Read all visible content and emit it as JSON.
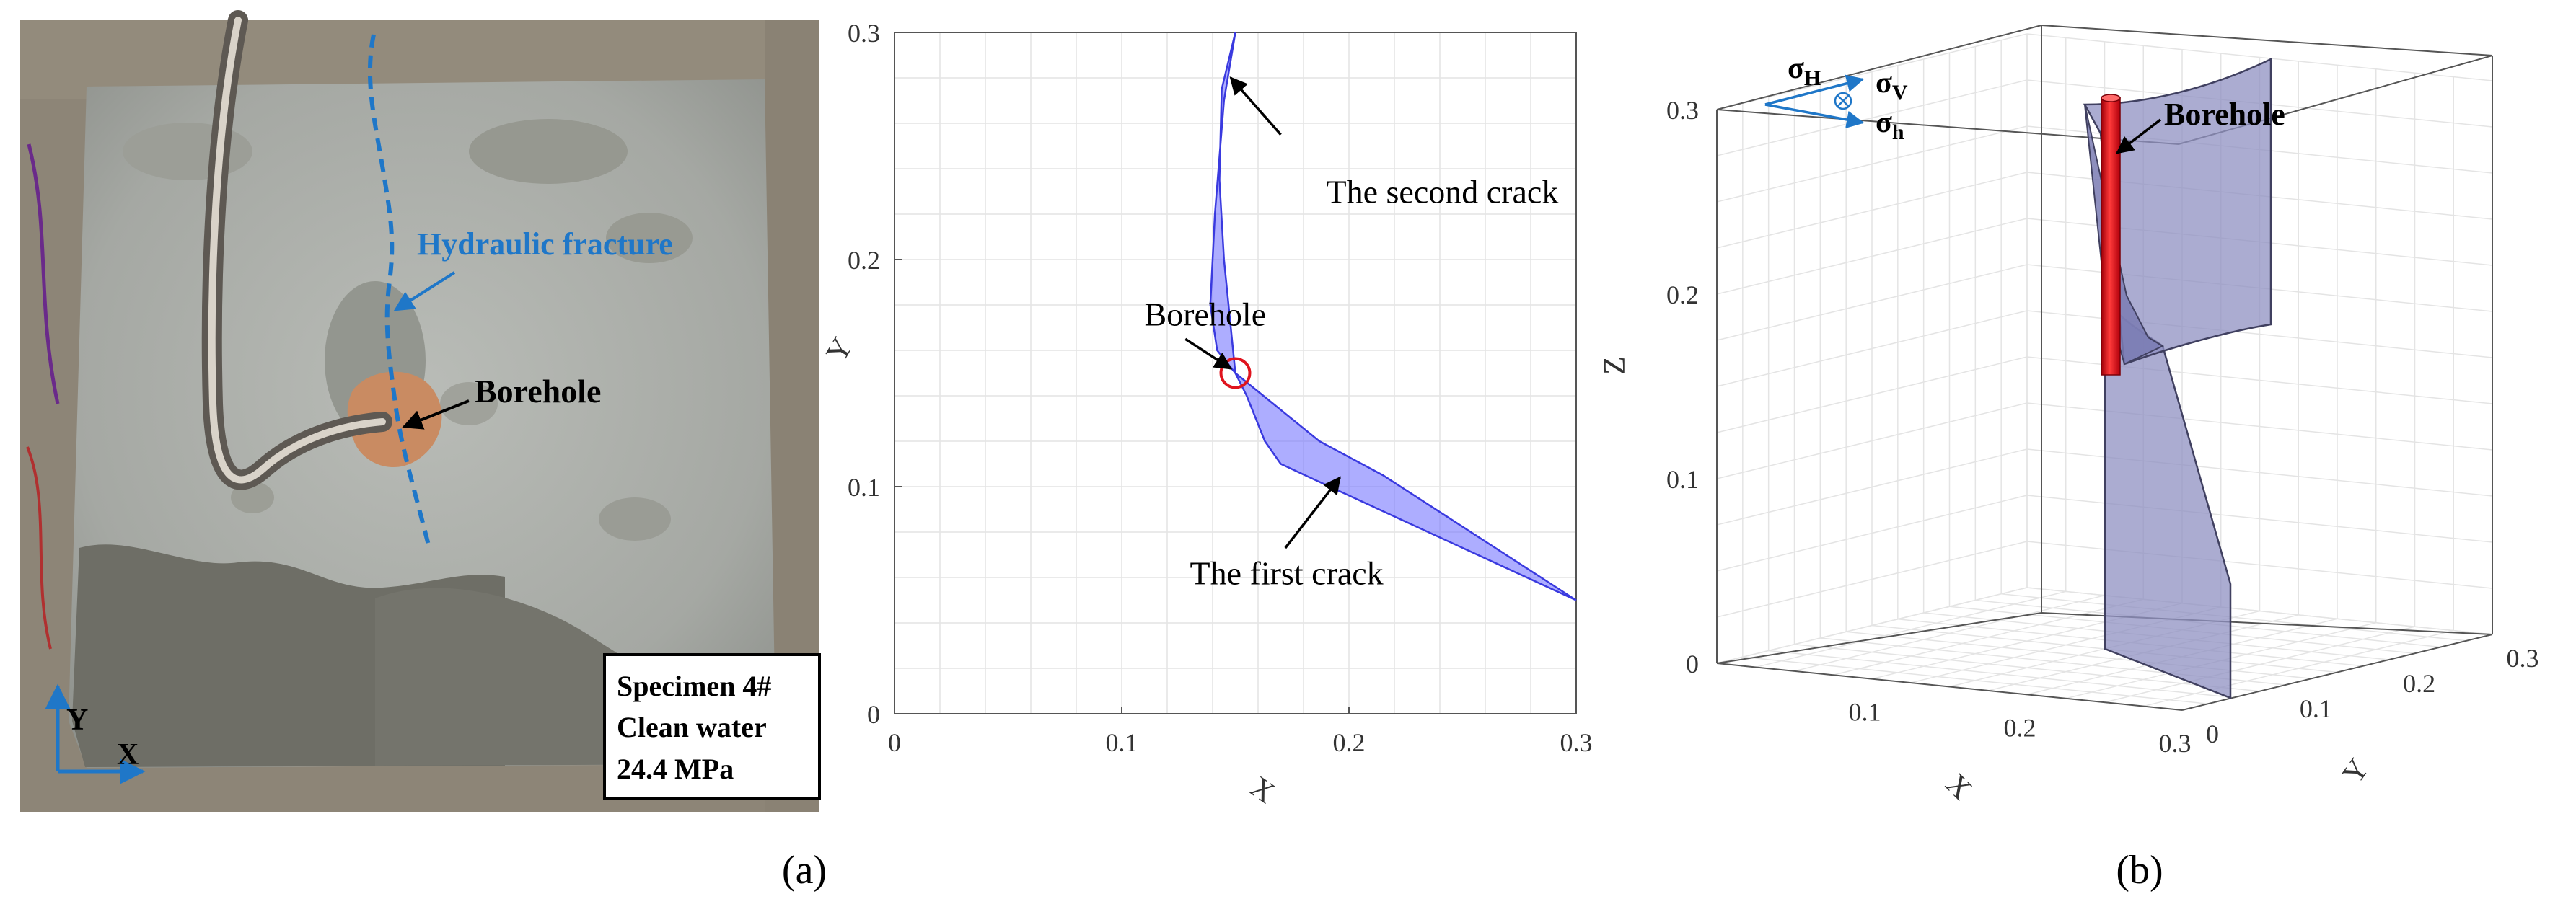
{
  "photo": {
    "fracture_label": "Hydraulic fracture",
    "borehole_label": "Borehole",
    "axis_y": "Y",
    "axis_x": "X",
    "info_lines": [
      "Specimen 4#",
      "Clean water",
      "24.4 MPa"
    ]
  },
  "panel_labels": {
    "a": "(a)",
    "b": "(b)"
  },
  "chart_data": [
    {
      "type": "area",
      "xlabel": "X",
      "ylabel": "Y",
      "xlim": [
        0,
        0.3
      ],
      "ylim": [
        0,
        0.3
      ],
      "xticks": [
        0,
        0.1,
        0.2,
        0.3
      ],
      "yticks": [
        0,
        0.1,
        0.2,
        0.3
      ],
      "xtick_labels": [
        "0",
        "0.1",
        "0.2",
        "0.3"
      ],
      "ytick_labels": [
        "0",
        "0.1",
        "0.2",
        "0.3"
      ],
      "grid": true,
      "borehole": {
        "x": 0.15,
        "y": 0.15
      },
      "cracks": [
        {
          "polygon": [
            [
              0.15,
              0.15
            ],
            [
              0.145,
              0.2
            ],
            [
              0.143,
              0.235
            ],
            [
              0.144,
              0.275
            ],
            [
              0.15,
              0.3
            ],
            [
              0.145,
              0.27
            ],
            [
              0.141,
              0.22
            ],
            [
              0.139,
              0.18
            ],
            [
              0.142,
              0.16
            ]
          ]
        },
        {
          "polygon": [
            [
              0.15,
              0.15
            ],
            [
              0.155,
              0.14
            ],
            [
              0.163,
              0.12
            ],
            [
              0.17,
              0.11
            ],
            [
              0.185,
              0.103
            ],
            [
              0.3,
              0.05
            ],
            [
              0.215,
              0.105
            ],
            [
              0.187,
              0.12
            ]
          ]
        }
      ],
      "annotations": [
        {
          "text": "The second crack",
          "at": [
            0.19,
            0.225
          ],
          "arrow_from": [
            0.17,
            0.255
          ],
          "arrow_to": [
            0.148,
            0.28
          ]
        },
        {
          "text": "Borehole",
          "at": [
            0.11,
            0.171
          ],
          "arrow_from": [
            0.128,
            0.165
          ],
          "arrow_to": [
            0.148,
            0.152
          ]
        },
        {
          "text": "The first crack",
          "at": [
            0.13,
            0.057
          ],
          "arrow_from": [
            0.172,
            0.073
          ],
          "arrow_to": [
            0.196,
            0.104
          ]
        },
        {
          "text": "",
          "at": [
            0.0,
            0.0
          ],
          "arrow_from": [
            0.0,
            0.0
          ],
          "arrow_to": [
            0.0,
            0.0
          ]
        }
      ]
    },
    {
      "type": "area",
      "xlabel": "X",
      "ylabel": "Y",
      "zlabel": "Z",
      "xlim": [
        0,
        0.3
      ],
      "ylim": [
        0,
        0.3
      ],
      "zlim": [
        0,
        0.3
      ],
      "xtick_labels": [
        "0.1",
        "0.2",
        "0.3"
      ],
      "ytick_labels": [
        "0",
        "0.1",
        "0.2",
        "0.3"
      ],
      "ztick_labels": [
        "0",
        "0.1",
        "0.2",
        "0.3"
      ],
      "grid": true,
      "borehole_label": "Borehole",
      "stress_labels": {
        "H": "σH",
        "V": "σV",
        "h": "σh",
        "H_main": "σ",
        "H_sub": "H",
        "V_main": "σ",
        "V_sub": "V",
        "h_main": "σ",
        "h_sub": "h"
      }
    }
  ],
  "colors": {
    "crack_fill": "#6a6aff",
    "crack_edge": "#3a3adf",
    "crack3d_fill": "#8f90c2",
    "crack3d_edge": "#404060",
    "borehole_red": "#e0141e",
    "blue_annotation": "#1f77c8",
    "grid": "#e4e4e4",
    "axis": "#333333"
  }
}
